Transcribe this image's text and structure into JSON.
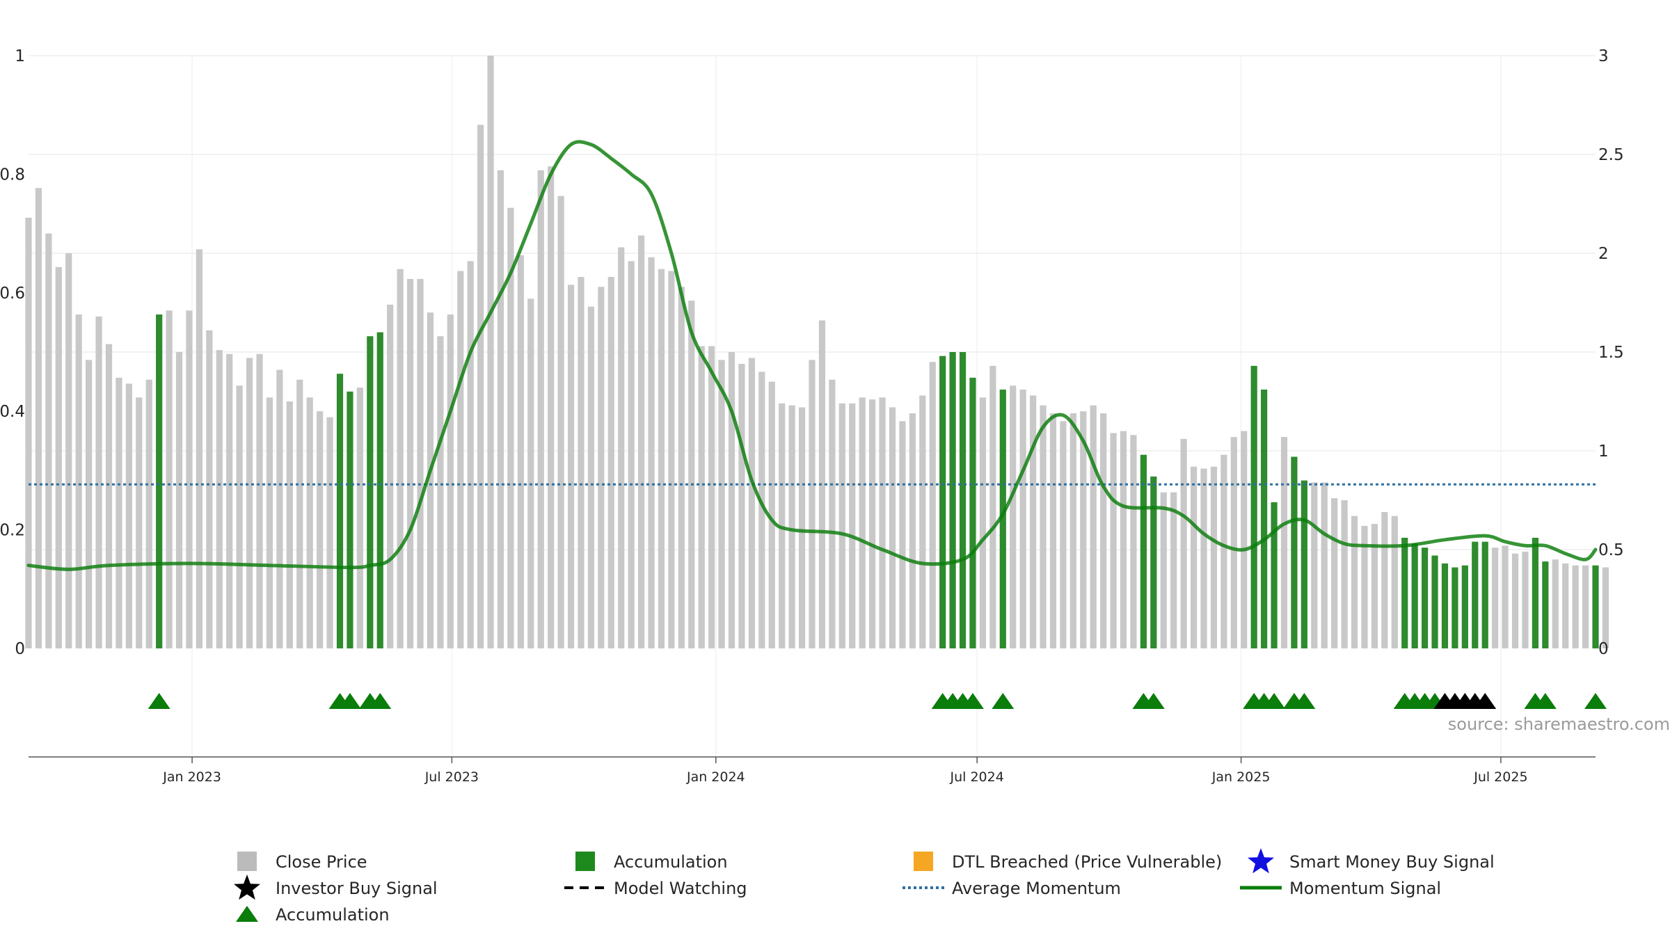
{
  "chart_data": {
    "type": "bar",
    "title": "",
    "xlabel": "",
    "ylabel": "",
    "source": "source: sharemaestro.com",
    "left_axis": {
      "ylim": [
        0,
        1
      ],
      "ticks": [
        "0",
        "0.2",
        "0.4",
        "0.6",
        "0.8",
        "1"
      ]
    },
    "right_axis": {
      "ylim": [
        0,
        3
      ],
      "ticks": [
        "0",
        "0.5",
        "1",
        "1.5",
        "2",
        "2.5",
        "3"
      ]
    },
    "x_range": [
      "2022-09-09",
      "2025-09-05"
    ],
    "x_ticks": [
      {
        "date": "2023-01-01",
        "label": "Jan 2023"
      },
      {
        "date": "2023-07-01",
        "label": "Jul 2023"
      },
      {
        "date": "2024-01-01",
        "label": "Jan 2024"
      },
      {
        "date": "2024-07-01",
        "label": "Jul 2024"
      },
      {
        "date": "2025-01-01",
        "label": "Jan 2025"
      },
      {
        "date": "2025-07-01",
        "label": "Jul 2025"
      }
    ],
    "grid": true,
    "legend_position": "bottom",
    "colors": {
      "close_price": "#c8c8c8",
      "accumulation": "#2e8b2e",
      "accumulation_marker": "#0a7d0a",
      "investor_buy": "#000000",
      "dtl": "#f5a623",
      "smart_money": "#1010e0",
      "model_watching": "#000000",
      "average_momentum": "#2f6f9f",
      "momentum": "#0a7d0a"
    },
    "series": [
      {
        "name": "Close Price",
        "start_date": "2022-09-09",
        "interval_days": 7,
        "values": [
          2.18,
          2.33,
          2.1,
          1.93,
          2.0,
          1.69,
          1.46,
          1.68,
          1.54,
          1.37,
          1.34,
          1.27,
          1.36,
          1.69,
          1.71,
          1.5,
          1.71,
          2.02,
          1.61,
          1.51,
          1.49,
          1.33,
          1.47,
          1.49,
          1.27,
          1.41,
          1.25,
          1.36,
          1.27,
          1.2,
          1.17,
          1.39,
          1.3,
          1.32,
          1.58,
          1.6,
          1.74,
          1.92,
          1.87,
          1.87,
          1.7,
          1.58,
          1.69,
          1.91,
          1.96,
          2.65,
          3.0,
          2.42,
          2.23,
          1.99,
          1.77,
          2.42,
          2.44,
          2.29,
          1.84,
          1.88,
          1.73,
          1.83,
          1.88,
          2.03,
          1.96,
          2.09,
          1.98,
          1.92,
          1.91,
          1.83,
          1.76,
          1.53,
          1.53,
          1.46,
          1.5,
          1.44,
          1.47,
          1.4,
          1.35,
          1.24,
          1.23,
          1.22,
          1.46,
          1.66,
          1.36,
          1.24,
          1.24,
          1.27,
          1.26,
          1.27,
          1.22,
          1.15,
          1.19,
          1.28,
          1.45,
          1.48,
          1.5,
          1.5,
          1.37,
          1.27,
          1.43,
          1.31,
          1.33,
          1.31,
          1.28,
          1.23,
          1.19,
          1.15,
          1.19,
          1.2,
          1.23,
          1.19,
          1.09,
          1.1,
          1.08,
          0.98,
          0.87,
          0.79,
          0.79,
          1.06,
          0.92,
          0.91,
          0.92,
          0.98,
          1.07,
          1.1,
          1.43,
          1.31,
          0.74,
          1.07,
          0.97,
          0.85,
          0.84,
          0.84,
          0.76,
          0.75,
          0.67,
          0.62,
          0.63,
          0.69,
          0.67,
          0.56,
          0.53,
          0.51,
          0.47,
          0.43,
          0.41,
          0.42,
          0.54,
          0.54,
          0.51,
          0.52,
          0.48,
          0.49,
          0.56,
          0.44,
          0.45,
          0.43,
          0.42,
          0.42,
          0.42,
          0.41
        ]
      },
      {
        "name": "Accumulation",
        "kind": "bars",
        "dates": [
          "2022-12-09",
          "2023-04-14",
          "2023-04-21",
          "2023-05-05",
          "2023-05-12",
          "2024-06-07",
          "2024-06-14",
          "2024-06-21",
          "2024-06-28",
          "2024-07-19",
          "2024-10-25",
          "2024-11-01",
          "2025-01-10",
          "2025-01-17",
          "2025-01-24",
          "2025-02-07",
          "2025-02-14",
          "2025-04-25",
          "2025-05-02",
          "2025-05-09",
          "2025-05-16",
          "2025-05-23",
          "2025-05-30",
          "2025-06-06",
          "2025-06-13",
          "2025-06-20",
          "2025-07-25",
          "2025-08-01",
          "2025-09-05"
        ]
      },
      {
        "name": "Momentum Signal",
        "kind": "line",
        "points": [
          [
            "2022-09-09",
            0.42
          ],
          [
            "2022-10-07",
            0.4
          ],
          [
            "2022-11-04",
            0.42
          ],
          [
            "2022-12-30",
            0.43
          ],
          [
            "2023-02-24",
            0.42
          ],
          [
            "2023-04-21",
            0.41
          ],
          [
            "2023-05-05",
            0.42
          ],
          [
            "2023-05-19",
            0.45
          ],
          [
            "2023-06-02",
            0.6
          ],
          [
            "2023-06-16",
            0.9
          ],
          [
            "2023-06-30",
            1.2
          ],
          [
            "2023-07-14",
            1.5
          ],
          [
            "2023-07-28",
            1.7
          ],
          [
            "2023-08-11",
            1.9
          ],
          [
            "2023-08-25",
            2.15
          ],
          [
            "2023-09-08",
            2.4
          ],
          [
            "2023-09-22",
            2.55
          ],
          [
            "2023-10-06",
            2.55
          ],
          [
            "2023-10-20",
            2.48
          ],
          [
            "2023-11-03",
            2.4
          ],
          [
            "2023-11-17",
            2.3
          ],
          [
            "2023-12-01",
            2.0
          ],
          [
            "2023-12-15",
            1.6
          ],
          [
            "2023-12-29",
            1.4
          ],
          [
            "2024-01-12",
            1.2
          ],
          [
            "2024-01-26",
            0.85
          ],
          [
            "2024-02-09",
            0.65
          ],
          [
            "2024-02-23",
            0.6
          ],
          [
            "2024-03-29",
            0.58
          ],
          [
            "2024-04-26",
            0.5
          ],
          [
            "2024-05-24",
            0.43
          ],
          [
            "2024-06-21",
            0.45
          ],
          [
            "2024-07-05",
            0.55
          ],
          [
            "2024-07-19",
            0.68
          ],
          [
            "2024-08-02",
            0.9
          ],
          [
            "2024-08-16",
            1.12
          ],
          [
            "2024-08-30",
            1.18
          ],
          [
            "2024-09-13",
            1.05
          ],
          [
            "2024-09-27",
            0.82
          ],
          [
            "2024-10-11",
            0.72
          ],
          [
            "2024-11-08",
            0.71
          ],
          [
            "2024-11-22",
            0.67
          ],
          [
            "2024-12-06",
            0.58
          ],
          [
            "2024-12-20",
            0.52
          ],
          [
            "2025-01-03",
            0.5
          ],
          [
            "2025-01-17",
            0.55
          ],
          [
            "2025-01-31",
            0.63
          ],
          [
            "2025-02-14",
            0.65
          ],
          [
            "2025-02-28",
            0.58
          ],
          [
            "2025-03-14",
            0.53
          ],
          [
            "2025-03-28",
            0.52
          ],
          [
            "2025-04-25",
            0.52
          ],
          [
            "2025-05-23",
            0.55
          ],
          [
            "2025-06-20",
            0.57
          ],
          [
            "2025-07-04",
            0.54
          ],
          [
            "2025-07-18",
            0.52
          ],
          [
            "2025-08-01",
            0.52
          ],
          [
            "2025-08-15",
            0.48
          ],
          [
            "2025-08-29",
            0.45
          ],
          [
            "2025-09-05",
            0.5
          ]
        ]
      },
      {
        "name": "Average Momentum",
        "kind": "hline",
        "value": 0.83
      },
      {
        "name": "Accumulation",
        "kind": "markers",
        "marker": "triangle",
        "dates": [
          "2022-12-09",
          "2023-04-14",
          "2023-04-21",
          "2023-05-05",
          "2023-05-12",
          "2024-06-07",
          "2024-06-14",
          "2024-06-21",
          "2024-06-28",
          "2024-07-19",
          "2024-10-25",
          "2024-11-01",
          "2025-01-10",
          "2025-01-17",
          "2025-01-24",
          "2025-02-07",
          "2025-02-14",
          "2025-04-25",
          "2025-05-02",
          "2025-05-09",
          "2025-05-16",
          "2025-07-25",
          "2025-08-01",
          "2025-09-05"
        ]
      },
      {
        "name": "Investor Buy Signal",
        "kind": "markers",
        "marker": "triangle",
        "dates": [
          "2025-05-23",
          "2025-05-30",
          "2025-06-06",
          "2025-06-13",
          "2025-06-20"
        ]
      }
    ],
    "legend": [
      {
        "label": "Close Price",
        "marker": "square",
        "color": "#bbbbbb"
      },
      {
        "label": "Accumulation",
        "marker": "square",
        "color": "#1e8a1e"
      },
      {
        "label": "DTL Breached (Price Vulnerable)",
        "marker": "square",
        "color": "#f5a623"
      },
      {
        "label": "Smart Money Buy Signal",
        "marker": "star",
        "color": "#1010e0"
      },
      {
        "label": "Investor Buy Signal",
        "marker": "star",
        "color": "#000000"
      },
      {
        "label": "Model Watching",
        "marker": "dash",
        "color": "#000000"
      },
      {
        "label": "Average Momentum",
        "marker": "dot",
        "color": "#2f6f9f"
      },
      {
        "label": "Momentum Signal",
        "marker": "line",
        "color": "#0a7d0a"
      },
      {
        "label": "Accumulation",
        "marker": "triangle",
        "color": "#0a7d0a"
      }
    ]
  }
}
